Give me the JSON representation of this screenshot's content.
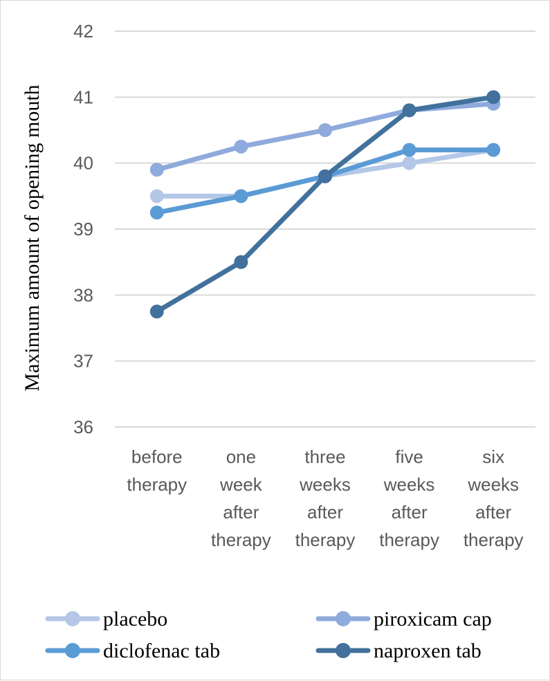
{
  "chart_data": {
    "type": "line",
    "title": "",
    "xlabel": "",
    "ylabel": "Maximum amount of opening mouth",
    "ylim": [
      36,
      42
    ],
    "yticks": [
      "36",
      "37",
      "38",
      "39",
      "40",
      "41",
      "42"
    ],
    "grid": true,
    "legend_position": "bottom",
    "categories": [
      [
        "before",
        "therapy"
      ],
      [
        "one",
        "week",
        "after",
        "therapy"
      ],
      [
        "three",
        "weeks",
        "after",
        "therapy"
      ],
      [
        "five",
        "weeks",
        "after",
        "therapy"
      ],
      [
        "six",
        "weeks",
        "after",
        "therapy"
      ]
    ],
    "series": [
      {
        "name": "placebo",
        "color": "#b4c7e7",
        "values": [
          39.5,
          39.5,
          39.8,
          40.0,
          40.2
        ]
      },
      {
        "name": "piroxicam cap",
        "color": "#8faadc",
        "values": [
          39.9,
          40.25,
          40.5,
          40.8,
          40.9
        ]
      },
      {
        "name": "diclofenac tab",
        "color": "#5b9bd5",
        "values": [
          39.25,
          39.5,
          39.8,
          40.2,
          40.2
        ]
      },
      {
        "name": "naproxen tab",
        "color": "#41719c",
        "values": [
          37.75,
          38.5,
          39.8,
          40.8,
          41.0
        ]
      }
    ]
  }
}
